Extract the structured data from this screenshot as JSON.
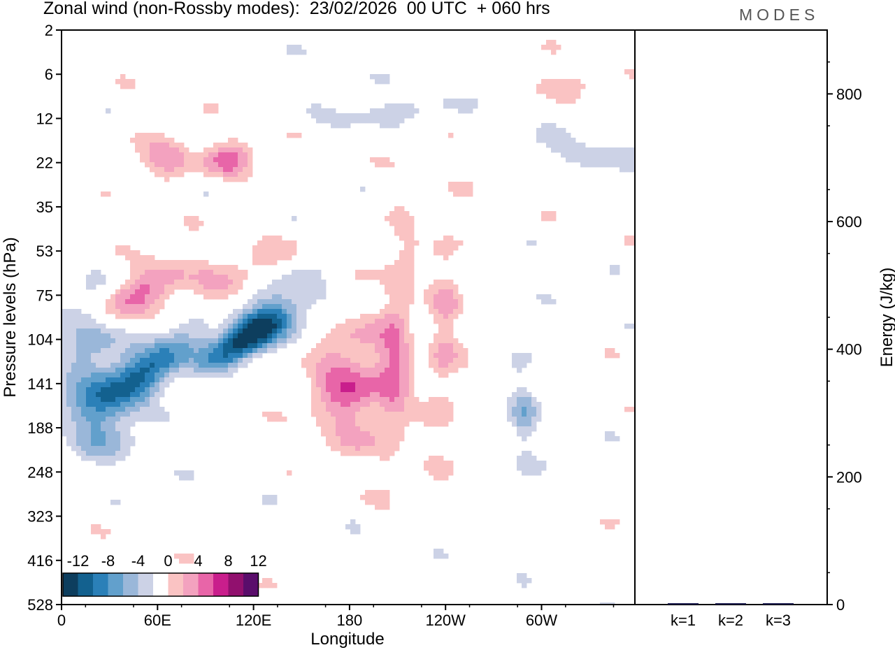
{
  "title": "Zonal wind (non-Rossby modes):  23/02/2026  00 UTC  + 060 hrs",
  "logo": "MODES",
  "colors": {
    "neg12": "#0d3e5e",
    "neg10": "#13618f",
    "neg8": "#2b80b8",
    "neg6": "#62a0cc",
    "neg4": "#9ab7d9",
    "neg2": "#ccd2e6",
    "zero": "#ffffff",
    "pos2": "#fac3c3",
    "pos4": "#f3a2bf",
    "pos6": "#e865a8",
    "pos8": "#c91e8c",
    "pos10": "#91106e",
    "pos12": "#5a0d6b"
  },
  "chart_data": [
    {
      "type": "heatmap",
      "title": "Zonal wind (non-Rossby modes):  23/02/2026  00 UTC  + 060 hrs",
      "xlabel": "Longitude",
      "ylabel": "Pressure levels (hPa)",
      "x_ticks": [
        "0",
        "60E",
        "120E",
        "180",
        "120W",
        "60W"
      ],
      "y_ticks": [
        "2",
        "6",
        "12",
        "22",
        "35",
        "53",
        "75",
        "104",
        "141",
        "188",
        "248",
        "323",
        "416",
        "528"
      ],
      "colorbar_levels": [
        -14,
        -12,
        -10,
        -8,
        -6,
        -4,
        -2,
        2,
        4,
        6,
        8,
        10,
        12,
        14
      ],
      "colorbar_labels": [
        "-12",
        "-8",
        "-4",
        "0",
        "4",
        "8",
        "12"
      ],
      "features": [
        {
          "lon": 115,
          "level": 104,
          "value": -13
        },
        {
          "lon": 60,
          "level": 121,
          "value": -9
        },
        {
          "lon": 25,
          "level": 160,
          "value": -7
        },
        {
          "lon": 135,
          "level": 80,
          "value": -5
        },
        {
          "lon": 180,
          "level": 141,
          "value": 7
        },
        {
          "lon": 15,
          "level": 95,
          "value": -5
        },
        {
          "lon": 50,
          "level": 72,
          "value": 6
        },
        {
          "lon": 110,
          "level": 68,
          "value": 5
        },
        {
          "lon": 105,
          "level": 21,
          "value": 6
        },
        {
          "lon": 65,
          "level": 20,
          "value": 5
        },
        {
          "lon": 210,
          "level": 110,
          "value": 5
        },
        {
          "lon": 240,
          "level": 104,
          "value": 4
        },
        {
          "lon": 310,
          "level": 7,
          "value": 4
        },
        {
          "lon": 200,
          "level": 11,
          "value": -4
        },
        {
          "lon": 290,
          "level": 172,
          "value": -4
        },
        {
          "lon": 330,
          "level": 20,
          "value": -4
        }
      ]
    },
    {
      "type": "bar",
      "categories": [
        "k=1",
        "k=2",
        "k=3"
      ],
      "values": [
        1,
        1,
        1
      ],
      "ylabel": "Energy (J/kg)",
      "y_ticks": [
        "0",
        "200",
        "400",
        "600",
        "800"
      ],
      "ylim": [
        0,
        900
      ]
    }
  ]
}
